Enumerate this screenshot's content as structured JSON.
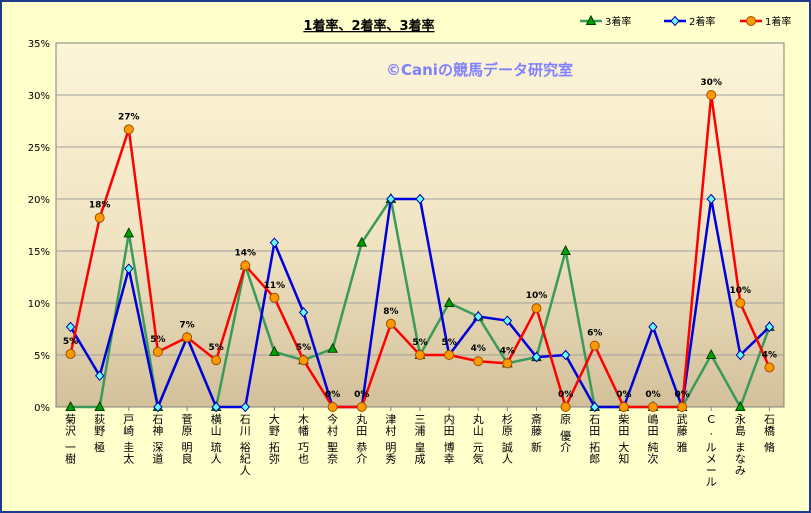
{
  "chart_data": {
    "type": "line",
    "title": "1着率、2着率、3着率",
    "watermark": "©Caniの競馬データ研究室",
    "xlabel": "",
    "ylabel": "",
    "ylim": [
      0,
      35
    ],
    "yticks": [
      "0%",
      "5%",
      "10%",
      "15%",
      "20%",
      "25%",
      "30%",
      "35%"
    ],
    "grid": true,
    "legend_position": "top-right",
    "categories": [
      "菊沢 一樹",
      "荻野 極",
      "戸崎 圭太",
      "石神 深道",
      "菅原 明良",
      "横山 琉人",
      "石川 裕紀人",
      "大野 拓弥",
      "木幡 巧也",
      "今村 聖奈",
      "丸田 恭介",
      "津村 明秀",
      "三浦 皇成",
      "内田 博幸",
      "丸山 元気",
      "杉原 誠人",
      "斎藤 新",
      "原 優介",
      "石田 拓郎",
      "柴田 大知",
      "嶋田 純次",
      "武藤 雅",
      "C. ルメール",
      "永島 まなみ",
      "石橋 脩"
    ],
    "series": [
      {
        "name": "3着率",
        "color": "#3a9a5b",
        "marker": "triangle",
        "marker_fill": "#00a000",
        "values": [
          0,
          0,
          16.7,
          0,
          6.7,
          0,
          13.6,
          5.3,
          4.5,
          5.6,
          15.8,
          20,
          5,
          10,
          8.7,
          4.2,
          4.8,
          15,
          0,
          0,
          0,
          0,
          5,
          0,
          7.7
        ]
      },
      {
        "name": "2着率",
        "color": "#0000dd",
        "marker": "diamond",
        "marker_fill": "#66ffff",
        "values": [
          7.7,
          3,
          13.3,
          0,
          6.7,
          0,
          0,
          15.8,
          9.1,
          0,
          0,
          20,
          20,
          5,
          8.7,
          8.3,
          4.8,
          5,
          0,
          0,
          7.7,
          0,
          20,
          5,
          7.7
        ]
      },
      {
        "name": "1着率",
        "color": "#ff0000",
        "marker": "circle",
        "marker_fill": "#ff9900",
        "values": [
          5.1,
          18.2,
          26.7,
          5.3,
          6.7,
          4.5,
          13.6,
          10.5,
          4.5,
          0,
          0,
          8,
          5,
          5,
          4.4,
          4.2,
          9.5,
          0,
          5.9,
          0,
          0,
          0,
          30,
          10,
          3.8
        ]
      }
    ],
    "data_labels": [
      {
        "category": "菊沢 一樹",
        "text": "5%"
      },
      {
        "category": "荻野 極",
        "text": "18%"
      },
      {
        "category": "戸崎 圭太",
        "text": "27%"
      },
      {
        "category": "石神 深道",
        "text": "5%"
      },
      {
        "category": "菅原 明良",
        "text": "7%"
      },
      {
        "category": "横山 琉人",
        "text": "5%"
      },
      {
        "category": "石川 裕紀人",
        "text": "14%"
      },
      {
        "category": "大野 拓弥",
        "text": "11%"
      },
      {
        "category": "木幡 巧也",
        "text": "5%"
      },
      {
        "category": "今村 聖奈",
        "text": "0%"
      },
      {
        "category": "丸田 恭介",
        "text": "0%"
      },
      {
        "category": "津村 明秀",
        "text": "8%"
      },
      {
        "category": "三浦 皇成",
        "text": "5%"
      },
      {
        "category": "内田 博幸",
        "text": "5%"
      },
      {
        "category": "丸山 元気",
        "text": "4%"
      },
      {
        "category": "杉原 誠人",
        "text": "4%"
      },
      {
        "category": "斎藤 新",
        "text": "10%"
      },
      {
        "category": "原 優介",
        "text": "0%"
      },
      {
        "category": "石田 拓郎",
        "text": "6%"
      },
      {
        "category": "柴田 大知",
        "text": "0%"
      },
      {
        "category": "嶋田 純次",
        "text": "0%"
      },
      {
        "category": "武藤 雅",
        "text": "0%"
      },
      {
        "category": "C. ルメール",
        "text": "30%"
      },
      {
        "category": "永島 まなみ",
        "text": "10%"
      },
      {
        "category": "石橋 脩",
        "text": "4%"
      }
    ]
  }
}
